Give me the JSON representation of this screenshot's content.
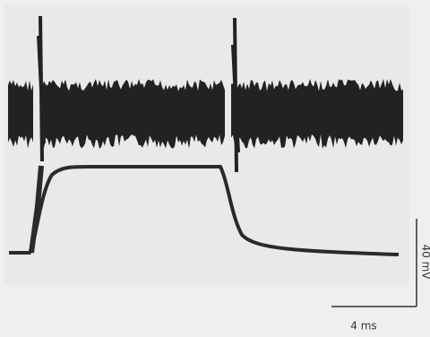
{
  "scale_bars": {
    "time": "4 ms",
    "voltage": "40 mV"
  }
}
